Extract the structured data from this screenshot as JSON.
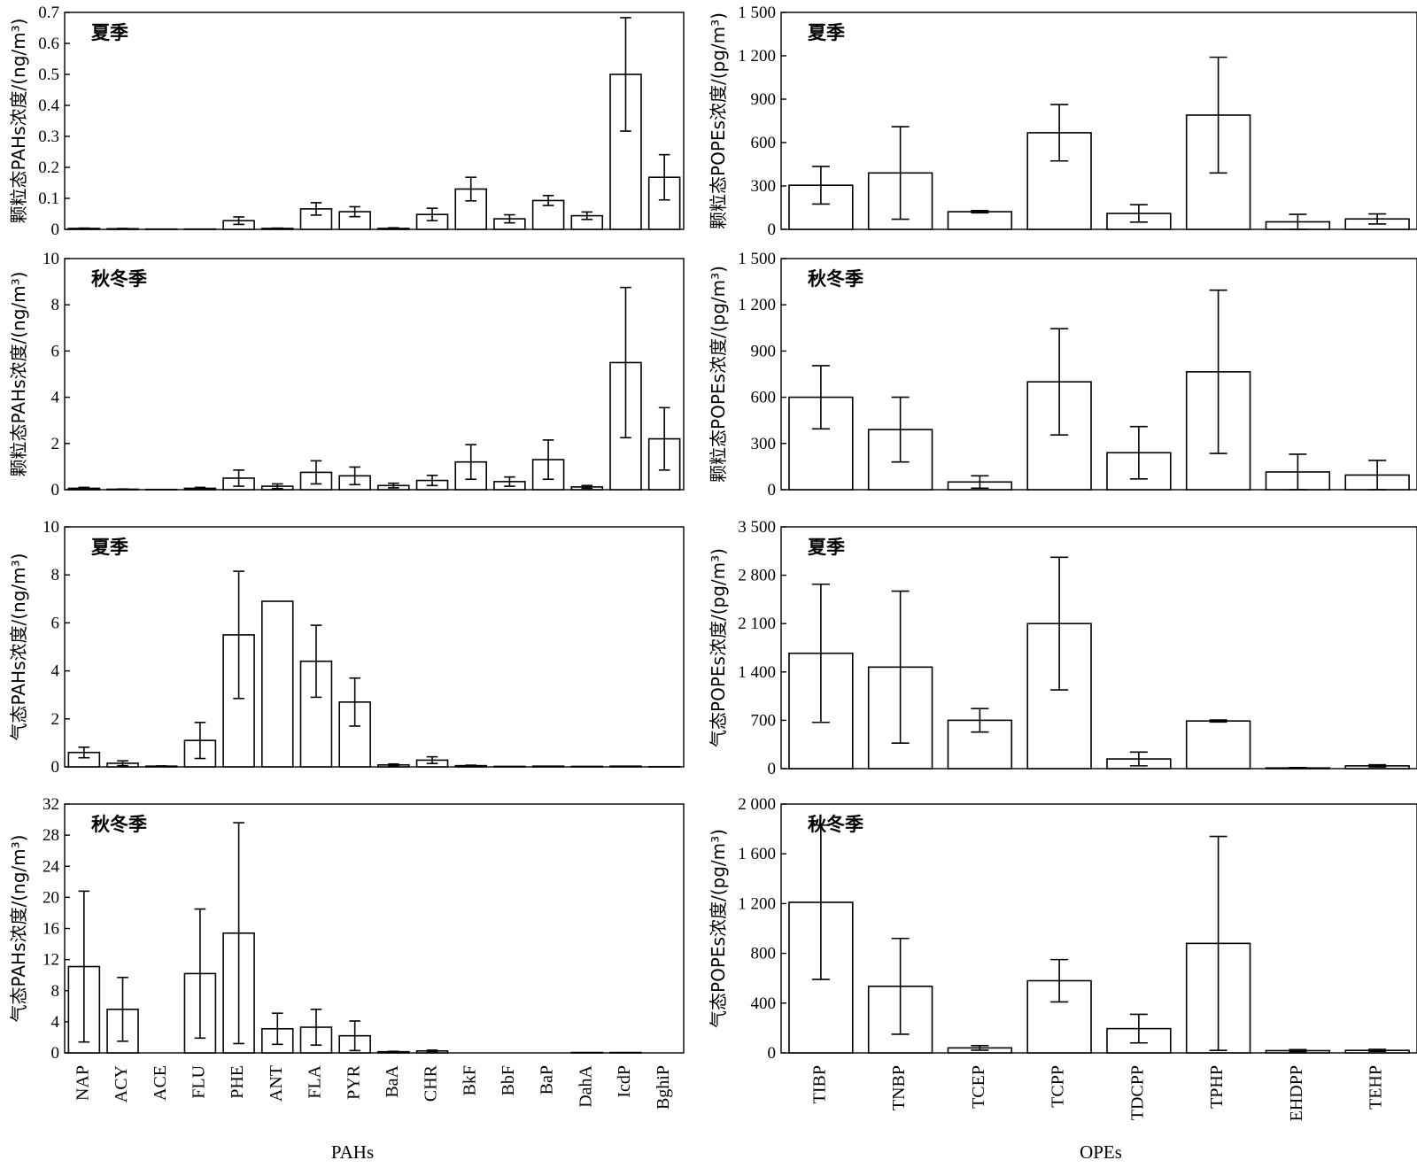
{
  "figure": {
    "pah_group_label": "PAHs",
    "ope_group_label": "OPEs"
  },
  "chart_data": [
    {
      "type": "bar",
      "season": "夏季",
      "ylabel": "颗粒态PAHs浓度/(ng/m³)",
      "categories": [
        "NAP",
        "ACY",
        "ACE",
        "FLU",
        "PHE",
        "ANT",
        "FLA",
        "PYR",
        "BaA",
        "CHR",
        "BkF",
        "BbF",
        "BaP",
        "DahA",
        "IcdP",
        "BghiP"
      ],
      "values": [
        0.003,
        0.002,
        0.001,
        0.001,
        0.028,
        0.003,
        0.066,
        0.057,
        0.003,
        0.048,
        0.13,
        0.034,
        0.093,
        0.044,
        0.5,
        0.168
      ],
      "errors": [
        0.001,
        0.001,
        0.0,
        0.0,
        0.012,
        0.001,
        0.02,
        0.016,
        0.002,
        0.02,
        0.038,
        0.013,
        0.016,
        0.012,
        0.183,
        0.073
      ],
      "ylim": [
        0,
        0.7
      ],
      "yticks": [
        "0",
        "0.1",
        "0.2",
        "0.3",
        "0.4",
        "0.5",
        "0.6",
        "0.7"
      ],
      "yticks_values": [
        0,
        0.1,
        0.2,
        0.3,
        0.4,
        0.5,
        0.6,
        0.7
      ]
    },
    {
      "type": "bar",
      "season": "夏季",
      "ylabel": "颗粒态POPEs浓度/(pg/m³)",
      "categories": [
        "TIBP",
        "TNBP",
        "TCEP",
        "TCPP",
        "TDCPP",
        "TPHP",
        "EHDPP",
        "TEHP"
      ],
      "values": [
        305,
        390,
        122,
        668,
        110,
        790,
        52,
        72
      ],
      "errors": [
        130,
        320,
        8,
        195,
        60,
        400,
        52,
        35
      ],
      "ylim": [
        0,
        1500
      ],
      "yticks": [
        "0",
        "300",
        "600",
        "900",
        "1 200",
        "1 500"
      ],
      "yticks_values": [
        0,
        300,
        600,
        900,
        1200,
        1500
      ]
    },
    {
      "type": "bar",
      "season": "秋冬季",
      "ylabel": "颗粒态PAHs浓度/(ng/m³)",
      "categories": [
        "NAP",
        "ACY",
        "ACE",
        "FLU",
        "PHE",
        "ANT",
        "FLA",
        "PYR",
        "BaA",
        "CHR",
        "BkF",
        "BbF",
        "BaP",
        "DahA",
        "IcdP",
        "BghiP"
      ],
      "values": [
        0.06,
        0.02,
        0.01,
        0.06,
        0.5,
        0.15,
        0.75,
        0.6,
        0.18,
        0.4,
        1.2,
        0.35,
        1.3,
        0.12,
        5.5,
        2.2
      ],
      "errors": [
        0.04,
        0.01,
        0.0,
        0.04,
        0.35,
        0.1,
        0.5,
        0.38,
        0.1,
        0.22,
        0.75,
        0.2,
        0.85,
        0.06,
        3.25,
        1.35
      ],
      "ylim": [
        0,
        10
      ],
      "yticks": [
        "0",
        "2",
        "4",
        "6",
        "8",
        "10"
      ],
      "yticks_values": [
        0,
        2,
        4,
        6,
        8,
        10
      ]
    },
    {
      "type": "bar",
      "season": "秋冬季",
      "ylabel": "颗粒态POPEs浓度/(pg/m³)",
      "categories": [
        "TIBP",
        "TNBP",
        "TCEP",
        "TCPP",
        "TDCPP",
        "TPHP",
        "EHDPP",
        "TEHP"
      ],
      "values": [
        600,
        390,
        50,
        700,
        240,
        765,
        115,
        95
      ],
      "errors": [
        205,
        210,
        40,
        345,
        170,
        530,
        115,
        95
      ],
      "ylim": [
        0,
        1500
      ],
      "yticks": [
        "0",
        "300",
        "600",
        "900",
        "1 200",
        "1 500"
      ],
      "yticks_values": [
        0,
        300,
        600,
        900,
        1200,
        1500
      ]
    },
    {
      "type": "bar",
      "season": "夏季",
      "ylabel": "气态PAHs浓度/(ng/m³)",
      "categories": [
        "NAP",
        "ACY",
        "ACE",
        "FLU",
        "PHE",
        "ANT",
        "FLA",
        "PYR",
        "BaA",
        "CHR",
        "BkF",
        "BbF",
        "BaP",
        "DahA",
        "IcdP",
        "BghiP"
      ],
      "values": [
        0.6,
        0.15,
        0.03,
        1.1,
        5.5,
        6.9,
        4.4,
        2.7,
        0.08,
        0.28,
        0.05,
        0.02,
        0.03,
        0.02,
        0.03,
        0.01
      ],
      "errors": [
        0.22,
        0.1,
        0.01,
        0.75,
        2.65,
        0.0,
        1.5,
        1.0,
        0.04,
        0.14,
        0.02,
        0.0,
        0.0,
        0.0,
        0.0,
        0.0
      ],
      "ylim": [
        0,
        10
      ],
      "yticks": [
        "0",
        "2",
        "4",
        "6",
        "8",
        "10"
      ],
      "yticks_values": [
        0,
        2,
        4,
        6,
        8,
        10
      ]
    },
    {
      "type": "bar",
      "season": "夏季",
      "ylabel": "气态POPEs浓度/(pg/m³)",
      "categories": [
        "TIBP",
        "TNBP",
        "TCEP",
        "TCPP",
        "TDCPP",
        "TPHP",
        "EHDPP",
        "TEHP"
      ],
      "values": [
        1670,
        1470,
        700,
        2100,
        140,
        690,
        10,
        40
      ],
      "errors": [
        1000,
        1100,
        170,
        960,
        100,
        15,
        5,
        15
      ],
      "ylim": [
        0,
        3500
      ],
      "yticks": [
        "0",
        "700",
        "1 400",
        "2 100",
        "2 800",
        "3 500"
      ],
      "yticks_values": [
        0,
        700,
        1400,
        2100,
        2800,
        3500
      ]
    },
    {
      "type": "bar",
      "season": "秋冬季",
      "ylabel": "气态PAHs浓度/(ng/m³)",
      "categories": [
        "NAP",
        "ACY",
        "ACE",
        "FLU",
        "PHE",
        "ANT",
        "FLA",
        "PYR",
        "BaA",
        "CHR",
        "BkF",
        "BbF",
        "BaP",
        "DahA",
        "IcdP",
        "BghiP"
      ],
      "values": [
        11.1,
        5.6,
        0.0,
        10.2,
        15.4,
        3.1,
        3.3,
        2.2,
        0.15,
        0.25,
        0.0,
        0.0,
        0.0,
        0.05,
        0.05,
        0.0
      ],
      "errors": [
        9.7,
        4.1,
        0.0,
        8.3,
        14.2,
        2.0,
        2.3,
        1.9,
        0.05,
        0.1,
        0.0,
        0.0,
        0.0,
        0.0,
        0.0,
        0.0
      ],
      "ylim": [
        0,
        32
      ],
      "yticks": [
        "0",
        "4",
        "8",
        "12",
        "16",
        "20",
        "24",
        "28",
        "32"
      ],
      "yticks_values": [
        0,
        4,
        8,
        12,
        16,
        20,
        24,
        28,
        32
      ]
    },
    {
      "type": "bar",
      "season": "秋冬季",
      "ylabel": "气态POPEs浓度/(pg/m³)",
      "categories": [
        "TIBP",
        "TNBP",
        "TCEP",
        "TCPP",
        "TDCPP",
        "TPHP",
        "EHDPP",
        "TEHP"
      ],
      "values": [
        1210,
        535,
        40,
        580,
        195,
        880,
        18,
        20
      ],
      "errors": [
        620,
        385,
        18,
        170,
        115,
        860,
        8,
        8
      ],
      "ylim": [
        0,
        2000
      ],
      "yticks": [
        "0",
        "400",
        "800",
        "1 200",
        "1 600",
        "2 000"
      ],
      "yticks_values": [
        0,
        400,
        800,
        1200,
        1600,
        2000
      ]
    }
  ]
}
